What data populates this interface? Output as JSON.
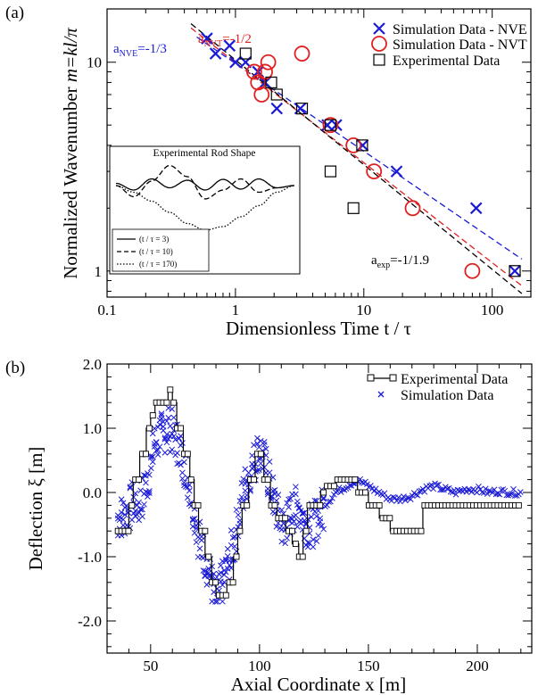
{
  "panel_a": {
    "label": "(a)",
    "xlabel": "Dimensionless Time  t / τ",
    "ylabel_main": "Normalized Wavenumber ",
    "ylabel_italic": "m=kl/π",
    "xticks": [
      {
        "v": 0.1,
        "label": "0.1"
      },
      {
        "v": 1,
        "label": "1"
      },
      {
        "v": 10,
        "label": "10"
      },
      {
        "v": 100,
        "label": "100"
      }
    ],
    "yticks": [
      {
        "v": 1,
        "label": "1"
      },
      {
        "v": 10,
        "label": "10"
      }
    ],
    "legend": [
      {
        "label": "Simulation Data - NVE",
        "marker": "x",
        "color": "#1a1ad6"
      },
      {
        "label": "Simulation Data - NVT",
        "marker": "o",
        "color": "#e02020"
      },
      {
        "label": "Experimental Data",
        "marker": "s",
        "color": "#000000"
      }
    ],
    "annotations": {
      "nve_base": "a",
      "nve_sub": "NVE",
      "nve_val": "=-1/3",
      "nvt_base": "a",
      "nvt_sub": "NVT",
      "nvt_val": "=-1/2",
      "exp_base": "a",
      "exp_sub": "exp",
      "exp_val": "=-1/1.9"
    },
    "inset": {
      "title": "Experimental Rod Shape",
      "legend": [
        "(t / τ = 3)",
        "(t / τ = 10)",
        "(t / τ = 170)"
      ]
    }
  },
  "panel_b": {
    "label": "(b)",
    "xlabel": "Axial Coordinate x [m]",
    "ylabel": "Deflection ξ [m]",
    "xticks": [
      {
        "v": 50,
        "label": "50"
      },
      {
        "v": 100,
        "label": "100"
      },
      {
        "v": 150,
        "label": "150"
      },
      {
        "v": 200,
        "label": "200"
      }
    ],
    "yticks": [
      {
        "v": 2,
        "label": "2.0"
      },
      {
        "v": 1,
        "label": "1.0"
      },
      {
        "v": 0,
        "label": "0.0"
      },
      {
        "v": -1,
        "label": "-1.0"
      },
      {
        "v": -2,
        "label": "-2.0"
      }
    ],
    "legend": [
      {
        "label": "Experimental Data",
        "color": "#000000"
      },
      {
        "label": "Simulation Data",
        "color": "#1a1ad6"
      }
    ]
  },
  "chart_data": [
    {
      "type": "scatter",
      "xscale": "log",
      "yscale": "log",
      "xlim": [
        0.1,
        200
      ],
      "ylim": [
        0.75,
        18
      ],
      "xlabel": "Dimensionless Time  t / τ",
      "ylabel": "Normalized Wavenumber m=kl/π",
      "legend_position": "top-right",
      "series": [
        {
          "name": "Simulation Data - NVE",
          "color": "#1a1ad6",
          "marker": "x",
          "x": [
            0.6,
            0.7,
            0.9,
            1.0,
            1.2,
            1.5,
            1.7,
            2.1,
            3.2,
            5.2,
            6.1,
            9.8,
            18.0,
            75.0,
            150.0
          ],
          "y": [
            13,
            11,
            12,
            10,
            10,
            9,
            8,
            6,
            6,
            5,
            5,
            4,
            3,
            2,
            1
          ]
        },
        {
          "name": "Simulation Data - NVT",
          "color": "#e02020",
          "marker": "o",
          "x": [
            1.4,
            1.5,
            1.6,
            1.7,
            1.8,
            3.3,
            5.5,
            8.3,
            12.0,
            24.0,
            70.0
          ],
          "y": [
            9,
            8,
            7,
            9,
            10,
            11,
            5,
            4,
            3,
            2,
            1
          ]
        },
        {
          "name": "Experimental Data",
          "color": "#000000",
          "marker": "s",
          "x": [
            1.2,
            1.9,
            2.1,
            3.3,
            5.5,
            5.5,
            8.3,
            9.7,
            150.0
          ],
          "y": [
            11,
            8,
            7,
            6,
            5,
            3,
            2,
            4,
            1
          ]
        }
      ],
      "fit_lines": [
        {
          "name": "aNVE=-1/3",
          "color": "#1a1ad6",
          "x": [
            0.5,
            170
          ],
          "y": [
            13.2,
            1.14
          ]
        },
        {
          "name": "aNVT=-1/2",
          "color": "#e02020",
          "x": [
            0.45,
            170
          ],
          "y": [
            14.6,
            0.85
          ]
        },
        {
          "name": "aexp=-1/1.9",
          "color": "#000000",
          "x": [
            0.45,
            170
          ],
          "y": [
            15.3,
            0.78
          ]
        }
      ],
      "inset": {
        "title": "Experimental Rod Shape",
        "series": [
          {
            "name": "(t / τ = 3)",
            "dash": "solid",
            "x": [
              0,
              0.1,
              0.2,
              0.3,
              0.4,
              0.5,
              0.6,
              0.7,
              0.8,
              0.9,
              1
            ],
            "y": [
              0.05,
              -0.1,
              0.15,
              -0.05,
              0.12,
              -0.1,
              0.14,
              -0.08,
              0.15,
              -0.05,
              0.0
            ]
          },
          {
            "name": "(t / τ = 10)",
            "dash": "dashed",
            "x": [
              0,
              0.1,
              0.2,
              0.3,
              0.4,
              0.5,
              0.6,
              0.7,
              0.8,
              0.9,
              1
            ],
            "y": [
              0.0,
              -0.25,
              0.1,
              0.45,
              0.2,
              -0.3,
              -0.1,
              0.15,
              -0.15,
              -0.05,
              0.0
            ]
          },
          {
            "name": "(t / τ = 170)",
            "dash": "dotted",
            "x": [
              0,
              0.1,
              0.2,
              0.3,
              0.4,
              0.5,
              0.6,
              0.7,
              0.8,
              0.9,
              1
            ],
            "y": [
              0.0,
              -0.15,
              -0.35,
              -0.6,
              -0.85,
              -1.0,
              -0.92,
              -0.7,
              -0.45,
              -0.15,
              0.0
            ]
          }
        ]
      }
    },
    {
      "type": "line",
      "xlim": [
        30,
        225
      ],
      "ylim": [
        -2.5,
        2.0
      ],
      "xlabel": "Axial Coordinate x [m]",
      "ylabel": "Deflection ξ [m]",
      "legend_position": "top-right",
      "series": [
        {
          "name": "Experimental Data",
          "color": "#000000",
          "marker": "square-line",
          "x": [
            35,
            38,
            40,
            42,
            45,
            48,
            50,
            52,
            55,
            58,
            60,
            62,
            65,
            68,
            70,
            72,
            75,
            78,
            80,
            82,
            85,
            88,
            90,
            92,
            95,
            98,
            100,
            102,
            105,
            108,
            110,
            112,
            115,
            118,
            120,
            122,
            125,
            128,
            130,
            135,
            140,
            145,
            150,
            155,
            160,
            165,
            170,
            175,
            180,
            185,
            190,
            195,
            200,
            205,
            210,
            215,
            220
          ],
          "y": [
            -0.6,
            -0.6,
            -0.2,
            0.2,
            0.6,
            1.0,
            1.2,
            1.4,
            1.4,
            1.6,
            1.4,
            1.0,
            0.6,
            0.2,
            -0.2,
            -0.6,
            -1.0,
            -1.4,
            -1.6,
            -1.6,
            -1.4,
            -1.0,
            -0.6,
            -0.2,
            0.2,
            0.6,
            0.6,
            0.2,
            -0.2,
            -0.4,
            -0.4,
            -0.6,
            -0.8,
            -1.0,
            -0.6,
            -0.2,
            -0.2,
            0.0,
            0.1,
            0.2,
            0.2,
            0.0,
            -0.2,
            -0.4,
            -0.6,
            -0.6,
            -0.6,
            -0.2,
            -0.2,
            -0.2,
            -0.2,
            -0.2,
            -0.2,
            -0.2,
            -0.2,
            -0.2,
            -0.2
          ]
        },
        {
          "name": "Simulation Data",
          "color": "#1a1ad6",
          "marker": "x",
          "x": [
            35,
            38,
            40,
            42,
            45,
            48,
            50,
            52,
            55,
            58,
            60,
            62,
            65,
            68,
            70,
            72,
            75,
            78,
            80,
            82,
            85,
            88,
            90,
            92,
            95,
            98,
            100,
            102,
            105,
            108,
            110,
            112,
            115,
            118,
            120,
            122,
            125,
            128,
            130,
            135,
            140,
            145,
            150,
            155,
            160,
            165,
            170,
            175,
            180,
            185,
            190,
            195,
            200,
            205,
            210,
            215,
            220
          ],
          "y": [
            -0.4,
            -0.35,
            -0.3,
            -0.1,
            -0.2,
            0.1,
            0.4,
            0.8,
            0.9,
            1.0,
            0.95,
            0.8,
            0.5,
            0.1,
            -0.3,
            -0.7,
            -1.0,
            -1.4,
            -1.7,
            -1.5,
            -1.2,
            -0.8,
            -0.5,
            -0.1,
            0.3,
            0.5,
            0.7,
            0.5,
            0.1,
            -0.3,
            -0.5,
            -0.5,
            -0.3,
            -0.2,
            -0.4,
            -0.5,
            -0.5,
            -0.3,
            -0.2,
            0.0,
            0.1,
            0.2,
            0.1,
            0.0,
            -0.1,
            -0.1,
            -0.05,
            0.05,
            0.1,
            0.05,
            0.0,
            0.05,
            0.05,
            0.0,
            0.02,
            0.0,
            0.0
          ]
        }
      ]
    }
  ]
}
